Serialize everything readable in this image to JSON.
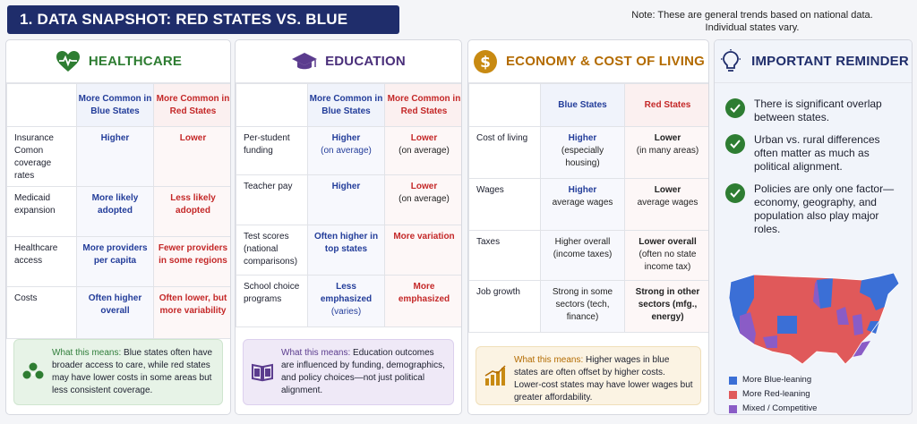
{
  "header": {
    "title": "1. DATA SNAPSHOT: RED STATES VS. BLUE STATES",
    "note_line1": "Note: These are general trends based on national data.",
    "note_line2": "Individual states vary."
  },
  "colors": {
    "navy": "#1f2d6b",
    "blue": "#233d9a",
    "red": "#c42828",
    "green": "#2e7d32",
    "purple": "#5b3c8e",
    "gold": "#b36b00"
  },
  "healthcare": {
    "title": "HEALTHCARE",
    "icon": "heart-pulse-icon",
    "col_blue": "More Common in Blue States",
    "col_red": "More Common in Red States",
    "rows": [
      {
        "label": "Insurance Comon coverage rates",
        "blue": "Higher",
        "red": "Lower"
      },
      {
        "label": "Medicaid expansion",
        "blue": "More likely adopted",
        "red": "Less likely adopted"
      },
      {
        "label": "Healthcare access",
        "blue": "More providers per capita",
        "red": "Fewer providers in some regions"
      },
      {
        "label": "Costs",
        "blue": "Often higher overall",
        "red": "Often lower, but more variability"
      }
    ],
    "callout_lead": "What this means:",
    "callout_text": " Blue states often have broader access to care, while red states may have lower costs in some areas but less consistent coverage."
  },
  "education": {
    "title": "EDUCATION",
    "icon": "graduation-cap-icon",
    "col_blue": "More Common in Blue States",
    "col_red": "More Common in Red States",
    "rows": [
      {
        "label": "Per-student funding",
        "blue": "Higher",
        "blue_sub": "(on average)",
        "red": "Lower",
        "red_sub": "(on average)"
      },
      {
        "label": "Teacher pay",
        "blue": "Higher",
        "blue_sub": "",
        "red": "Lower",
        "red_sub": "(on average)"
      },
      {
        "label": "Test scores (national comparisons)",
        "blue": "Often higher in top states",
        "blue_sub": "",
        "red": "More variation",
        "red_sub": ""
      },
      {
        "label": "School choice programs",
        "blue": "Less emphasized",
        "blue_sub": "(varies)",
        "red": "More emphasized",
        "red_sub": ""
      }
    ],
    "callout_lead": "What this means:",
    "callout_text": " Education outcomes are influenced by funding, demographics, and policy choices—not just political alignment."
  },
  "economy": {
    "title": "ECONOMY & COST OF LIVING",
    "icon": "dollar-coin-icon",
    "col_blue": "Blue States",
    "col_red": "Red States",
    "rows": [
      {
        "label": "Cost of living",
        "blue": "Higher",
        "blue_sub": "(especially housing)",
        "red": "Lower",
        "red_sub": "(in many areas)"
      },
      {
        "label": "Wages",
        "blue": "Higher",
        "blue_sub": "average wages",
        "red": "Lower",
        "red_sub": "average wages"
      },
      {
        "label": "Taxes",
        "blue": "Higher overall",
        "blue_sub": "(income taxes)",
        "red": "Lower overall",
        "red_sub": "(often no state income tax)"
      },
      {
        "label": "Job growth",
        "blue": "Strong in some sectors (tech, finance)",
        "blue_sub": "",
        "red": "Strong in other sectors (mfg., energy)",
        "red_sub": ""
      }
    ],
    "callout_lead": "What this means:",
    "callout_text": " Higher wages in blue states are often offset by higher costs. Lower-cost states may have lower wages but greater affordability."
  },
  "reminder": {
    "title": "IMPORTANT REMINDER",
    "icon": "lightbulb-icon",
    "items": [
      "There is significant overlap between states.",
      "Urban vs. rural differences often matter as much as political alignment.",
      "Policies are only one factor—economy, geography, and population also play major roles."
    ],
    "legend": [
      {
        "label": "More Blue-leaning",
        "color": "#3b6fd6"
      },
      {
        "label": "More Red-leaning",
        "color": "#e0595a"
      },
      {
        "label": "Mixed / Competitive",
        "color": "#8a5cc6"
      }
    ]
  }
}
